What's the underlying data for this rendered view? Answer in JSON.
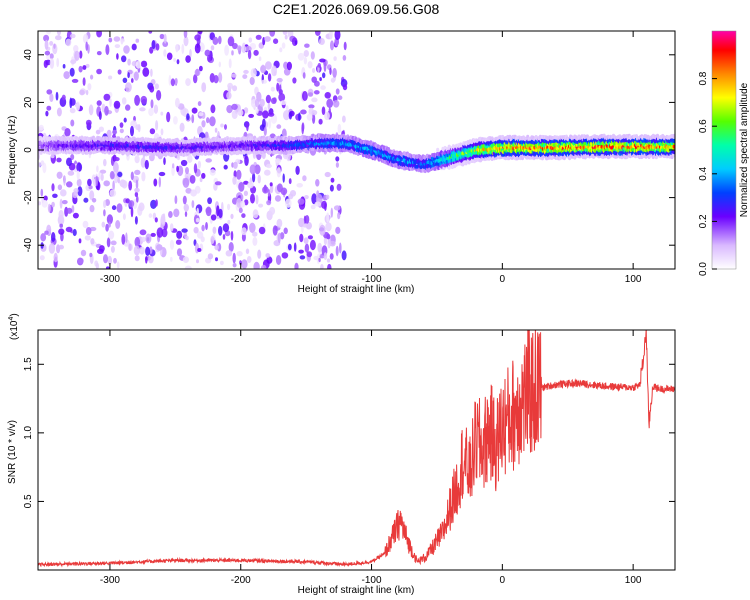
{
  "figure_title": "C2E1.2026.069.09.56.G08",
  "chart_data": [
    {
      "type": "heatmap",
      "xlabel": "Height of straight line (km)",
      "ylabel": "Frequency (Hz)",
      "xlim": [
        -355,
        132
      ],
      "ylim": [
        -50,
        50
      ],
      "xticks": [
        -300,
        -200,
        -100,
        0,
        100
      ],
      "xtick_labels": [
        "-300",
        "-200",
        "-100",
        "0",
        "100"
      ],
      "yticks": [
        -40,
        -20,
        0,
        20,
        40
      ],
      "ytick_labels": [
        "-40",
        "-20",
        "0",
        "20",
        "40"
      ],
      "colorbar": {
        "label": "Normalized spectral amplitude",
        "range": [
          0,
          1
        ],
        "ticks": [
          0.0,
          0.2,
          0.4,
          0.6,
          0.8
        ],
        "tick_labels": [
          "0.0",
          "0.2",
          "0.4",
          "0.6",
          "0.8"
        ],
        "colormap": "rainbow (white, violet, blue, cyan, green, yellow, orange, red, magenta)"
      },
      "ridge_center_frequency": {
        "x": [
          -355,
          -300,
          -250,
          -200,
          -160,
          -140,
          -120,
          -100,
          -80,
          -60,
          -40,
          -20,
          0,
          40,
          80,
          132
        ],
        "y": [
          2,
          2,
          1,
          2,
          2,
          3,
          3,
          0,
          -4,
          -6,
          -3,
          0,
          1,
          1,
          1.5,
          1.5
        ]
      },
      "ridge_peak_amplitude": {
        "x": [
          -355,
          -300,
          -200,
          -140,
          -100,
          -60,
          -20,
          0,
          50,
          100,
          132
        ],
        "y": [
          0.2,
          0.3,
          0.25,
          0.4,
          0.45,
          0.4,
          0.8,
          0.95,
          0.95,
          0.95,
          0.9
        ]
      },
      "scatter_region": {
        "x_range": [
          -355,
          -120
        ],
        "frequency_range": [
          -50,
          50
        ]
      }
    },
    {
      "type": "line",
      "xlabel": "Height of straight line (km)",
      "ylabel": "SNR (10 * v/v)",
      "y_multiplier_label": "(x10",
      "y_multiplier_exponent": "4",
      "y_multiplier_close": ")",
      "xlim": [
        -355,
        132
      ],
      "ylim": [
        0,
        17500
      ],
      "xticks": [
        -300,
        -200,
        -100,
        0,
        100
      ],
      "xtick_labels": [
        "-300",
        "-200",
        "-100",
        "0",
        "100"
      ],
      "yticks": [
        5000,
        10000,
        15000
      ],
      "ytick_labels": [
        "0.5",
        "1.0",
        "1.5"
      ],
      "color": "#e83a3a",
      "series": [
        {
          "x": [
            -355,
            -300,
            -250,
            -200,
            -150,
            -120,
            -100,
            -90,
            -82,
            -78,
            -72,
            -65,
            -58,
            -52,
            -45,
            -40,
            -35,
            -30,
            -25,
            -20,
            -15,
            -10,
            -5,
            0,
            5,
            10,
            15,
            20,
            25,
            30,
            40,
            50,
            60,
            70,
            80,
            90,
            100,
            105,
            108,
            110,
            112,
            115,
            120,
            125,
            132
          ],
          "y": [
            400,
            500,
            700,
            700,
            600,
            400,
            600,
            1200,
            2800,
            3600,
            2000,
            600,
            1000,
            1800,
            2800,
            4500,
            6000,
            8200,
            7000,
            9500,
            8800,
            10300,
            9000,
            10500,
            11000,
            11600,
            12400,
            12900,
            13100,
            13300,
            13500,
            13600,
            13600,
            13500,
            13400,
            13350,
            13300,
            13500,
            15500,
            17500,
            10500,
            13400,
            13200,
            13200,
            13200
          ]
        }
      ]
    }
  ]
}
